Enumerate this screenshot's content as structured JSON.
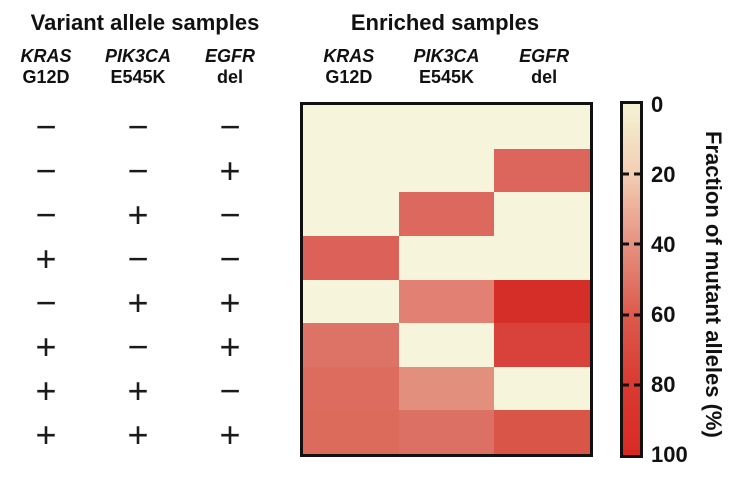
{
  "left_panel": {
    "title": "Variant allele samples",
    "columns": [
      {
        "gene": "KRAS",
        "mutation": "G12D"
      },
      {
        "gene": "PIK3CA",
        "mutation": "E545K"
      },
      {
        "gene": "EGFR",
        "mutation": "del"
      }
    ],
    "sign_rows": [
      [
        "−",
        "−",
        "−"
      ],
      [
        "−",
        "−",
        "+"
      ],
      [
        "−",
        "+",
        "−"
      ],
      [
        "+",
        "−",
        "−"
      ],
      [
        "−",
        "+",
        "+"
      ],
      [
        "+",
        "−",
        "+"
      ],
      [
        "+",
        "+",
        "−"
      ],
      [
        "+",
        "+",
        "+"
      ]
    ]
  },
  "right_panel": {
    "title": "Enriched samples",
    "columns": [
      {
        "gene": "KRAS",
        "mutation": "G12D"
      },
      {
        "gene": "PIK3CA",
        "mutation": "E545K"
      },
      {
        "gene": "EGFR",
        "mutation": "del"
      }
    ]
  },
  "chart_data": {
    "type": "heatmap",
    "title": "Enriched samples",
    "columns": [
      "KRAS G12D",
      "PIK3CA E545K",
      "EGFR del"
    ],
    "rows": [
      "− − −",
      "− − +",
      "− + −",
      "+ − −",
      "− + +",
      "+ − +",
      "+ + −",
      "+ + +"
    ],
    "values_percent": [
      [
        0,
        0,
        0
      ],
      [
        0,
        0,
        52
      ],
      [
        0,
        52,
        0
      ],
      [
        54,
        0,
        0
      ],
      [
        0,
        42,
        95
      ],
      [
        47,
        0,
        83
      ],
      [
        49,
        37,
        0
      ],
      [
        49,
        46,
        68
      ]
    ],
    "cell_colors": [
      [
        "#f6f4da",
        "#f6f4da",
        "#f6f4da"
      ],
      [
        "#f6f4da",
        "#f6f4da",
        "#dd665c"
      ],
      [
        "#f6f4da",
        "#dd685e",
        "#f6f4da"
      ],
      [
        "#dc6159",
        "#f6f4da",
        "#f6f4da"
      ],
      [
        "#f6f4da",
        "#e18073",
        "#d52d28"
      ],
      [
        "#dd7366",
        "#f6f4da",
        "#d8423a"
      ],
      [
        "#dd6b5e",
        "#e28f7e",
        "#f6f4da"
      ],
      [
        "#dd6b5c",
        "#dd7065",
        "#d95548"
      ]
    ],
    "colorbar": {
      "label": "Fraction of mutant alleles (%)",
      "ticks": [
        0,
        20,
        40,
        60,
        80,
        100
      ],
      "min": 0,
      "max": 100,
      "orientation": "vertical",
      "gradient_stops": [
        "#f5f3d4",
        "#f3cdb4",
        "#e69180",
        "#dd5a4d",
        "#d93a31",
        "#d92a24"
      ]
    },
    "legend_position": "right",
    "grid": false,
    "border_color": "#111111"
  }
}
